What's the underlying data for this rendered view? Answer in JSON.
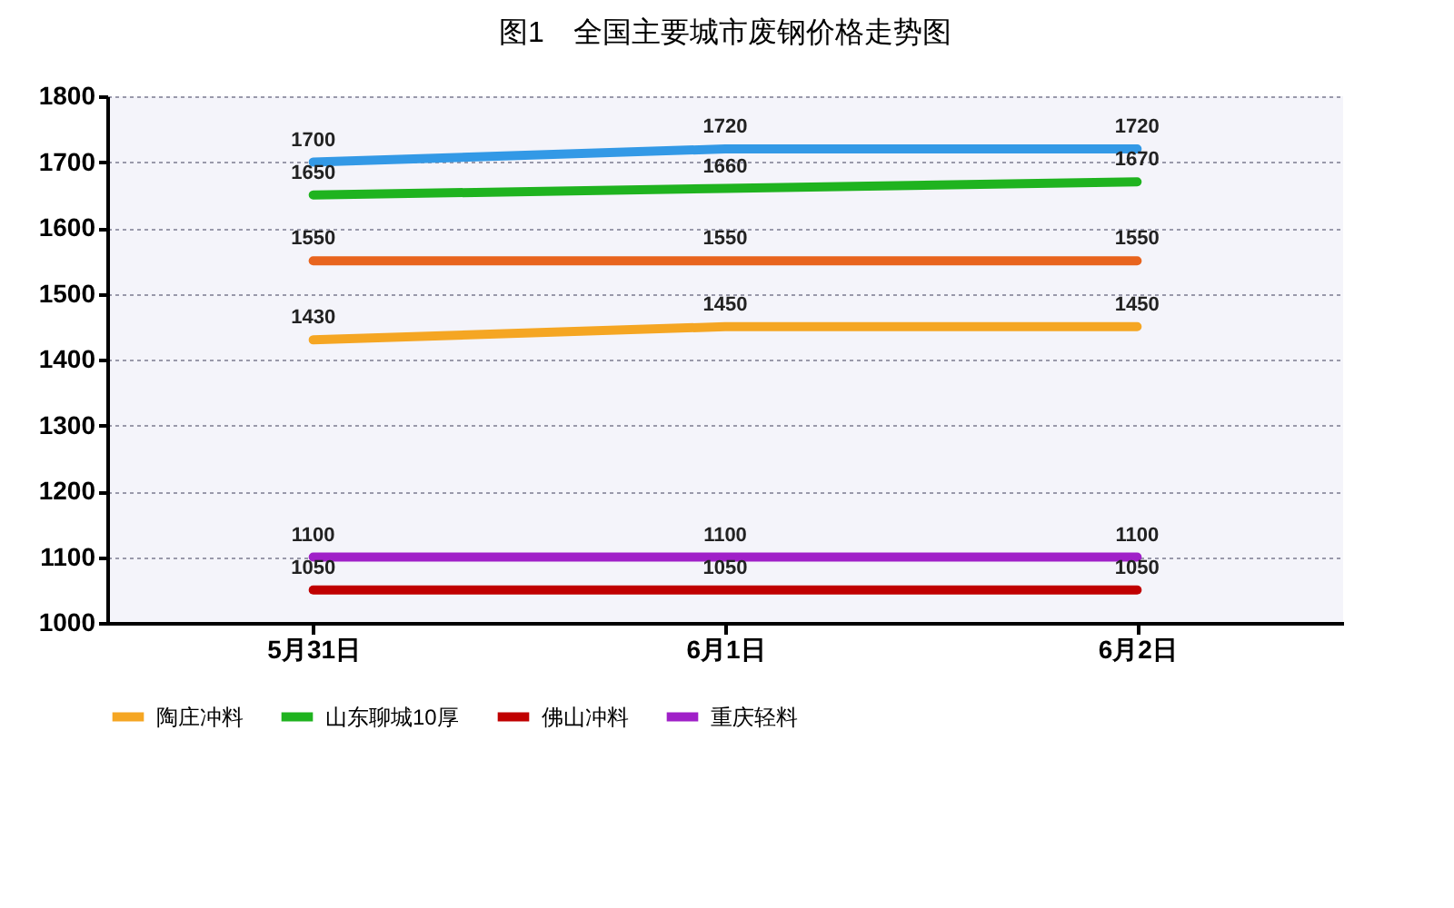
{
  "chart_data": {
    "type": "line",
    "title": "图1　全国主要城市废钢价格走势图",
    "categories": [
      "5月31日",
      "6月1日",
      "6月2日"
    ],
    "series": [
      {
        "name": "陶庄冲料",
        "color": "#f5a623",
        "values": [
          1430,
          1450,
          1450
        ]
      },
      {
        "name": "山东聊城10厚",
        "color": "#1fb31f",
        "values": [
          1650,
          1660,
          1670
        ]
      },
      {
        "name": "佛山冲料",
        "color": "#c00000",
        "values": [
          1050,
          1050,
          1050
        ]
      },
      {
        "name": "重庆轻料",
        "color": "#a020c8",
        "values": [
          1100,
          1100,
          1100
        ]
      },
      {
        "color": "#3399e6",
        "values": [
          1700,
          1720,
          1720
        ]
      },
      {
        "color": "#e8641e",
        "values": [
          1550,
          1550,
          1550
        ]
      }
    ],
    "ylim": [
      1000,
      1800
    ],
    "yticks": [
      1000,
      1100,
      1200,
      1300,
      1400,
      1500,
      1600,
      1700,
      1800
    ],
    "grid": "y",
    "legend": "bottom",
    "data_labels": true,
    "marker": "none",
    "line_style": "solid"
  }
}
